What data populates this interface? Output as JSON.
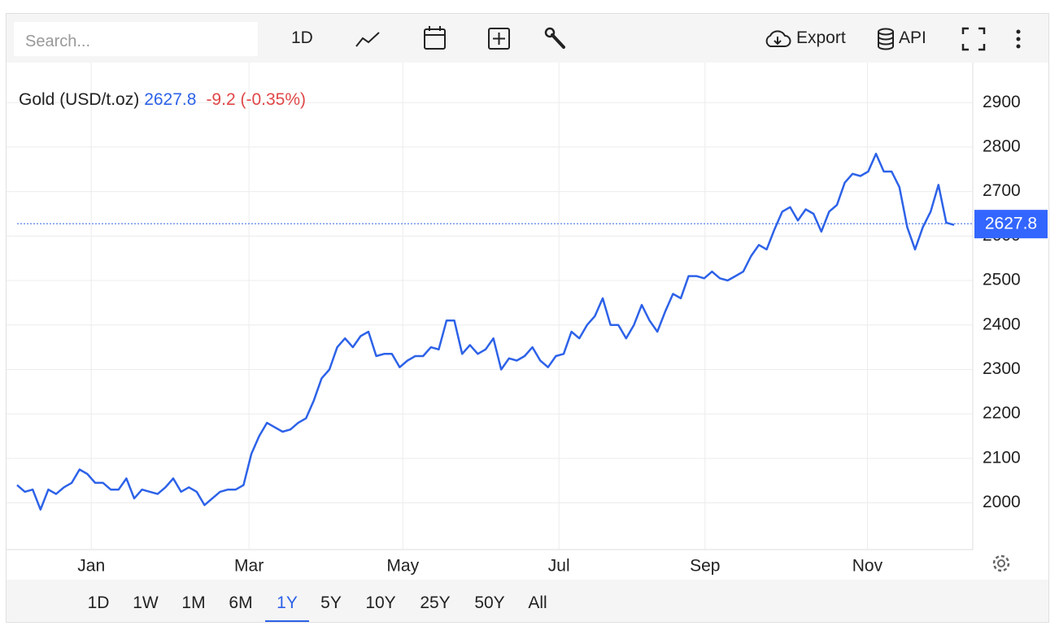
{
  "toolbar": {
    "search_placeholder": "Search...",
    "interval": "1D",
    "export": "Export",
    "api": "API"
  },
  "chart_data": {
    "type": "line",
    "title": "Gold (USD/t.oz)",
    "last_price": 2627.8,
    "change": "-9.2 (-0.35%)",
    "series": [
      {
        "name": "Gold (USD/t.oz)",
        "color": "#2d62e8",
        "values": [
          2040,
          2025,
          2030,
          1985,
          2030,
          2020,
          2035,
          2045,
          2075,
          2065,
          2045,
          2045,
          2030,
          2030,
          2055,
          2010,
          2030,
          2025,
          2020,
          2035,
          2055,
          2025,
          2035,
          2025,
          1995,
          2010,
          2025,
          2030,
          2030,
          2040,
          2110,
          2150,
          2180,
          2170,
          2160,
          2165,
          2180,
          2190,
          2230,
          2280,
          2300,
          2350,
          2370,
          2350,
          2375,
          2385,
          2330,
          2335,
          2335,
          2305,
          2320,
          2330,
          2330,
          2350,
          2345,
          2410,
          2410,
          2335,
          2355,
          2335,
          2345,
          2370,
          2300,
          2325,
          2320,
          2330,
          2350,
          2320,
          2305,
          2330,
          2335,
          2385,
          2370,
          2400,
          2420,
          2460,
          2400,
          2400,
          2370,
          2400,
          2445,
          2410,
          2385,
          2430,
          2470,
          2460,
          2510,
          2510,
          2505,
          2520,
          2505,
          2500,
          2510,
          2520,
          2555,
          2580,
          2570,
          2615,
          2655,
          2665,
          2635,
          2660,
          2650,
          2610,
          2655,
          2670,
          2720,
          2740,
          2735,
          2745,
          2785,
          2745,
          2745,
          2710,
          2620,
          2570,
          2620,
          2655,
          2715,
          2630,
          2625
        ]
      }
    ],
    "xticks": [
      {
        "value": 9.5,
        "label": "Jan"
      },
      {
        "value": 29.7,
        "label": "Mar"
      },
      {
        "value": 49.4,
        "label": "May"
      },
      {
        "value": 69.4,
        "label": "Jul"
      },
      {
        "value": 88.1,
        "label": "Sep"
      },
      {
        "value": 108.9,
        "label": "Nov"
      }
    ],
    "ylim": [
      1895,
      2990
    ],
    "yticks": [
      2000,
      2100,
      2200,
      2300,
      2400,
      2500,
      2600,
      2700,
      2800,
      2900
    ],
    "grid": true
  },
  "ranges": [
    {
      "label": "1D"
    },
    {
      "label": "1W"
    },
    {
      "label": "1M"
    },
    {
      "label": "6M"
    },
    {
      "label": "1Y",
      "active": true
    },
    {
      "label": "5Y"
    },
    {
      "label": "10Y"
    },
    {
      "label": "25Y"
    },
    {
      "label": "50Y"
    },
    {
      "label": "All"
    }
  ]
}
